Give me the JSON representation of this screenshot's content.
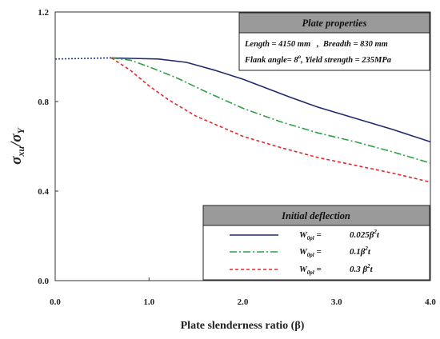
{
  "chart_data": {
    "type": "line",
    "xlabel": "Plate slenderness ratio (β)",
    "ylabel_main": "σ",
    "ylabel_sub1": "xu",
    "ylabel_slash": "/σ",
    "ylabel_sub2": "Y",
    "xlim": [
      0,
      4.0
    ],
    "ylim": [
      0,
      1.2
    ],
    "x_ticks": [
      0.0,
      1.0,
      2.0,
      3.0,
      4.0
    ],
    "x_tick_labels": [
      "0.0",
      "1.0",
      "2.0",
      "3.0",
      "4.0"
    ],
    "y_ticks": [
      0.0,
      0.4,
      0.8,
      1.2
    ],
    "y_tick_labels": [
      "0.0",
      "0.4",
      "0.8",
      "1.2"
    ],
    "grid": false,
    "prefix_segment": {
      "x": [
        0,
        0.6
      ],
      "y": [
        0.99,
        0.995
      ],
      "color": "#1f3a8c",
      "dash": "dotted"
    },
    "series": [
      {
        "key": "s1",
        "color": "#1f2a6e",
        "dash": "solid",
        "x": [
          0.6,
          0.8,
          1.1,
          1.4,
          1.7,
          2.0,
          2.5,
          2.8,
          3.2,
          3.6,
          4.0
        ],
        "y": [
          0.995,
          0.993,
          0.99,
          0.975,
          0.94,
          0.9,
          0.82,
          0.775,
          0.725,
          0.675,
          0.62
        ]
      },
      {
        "key": "s2",
        "color": "#2ea043",
        "dash": "dashdot",
        "x": [
          0.6,
          0.8,
          1.0,
          1.3,
          1.6,
          2.0,
          2.4,
          2.8,
          3.2,
          3.6,
          4.0
        ],
        "y": [
          0.995,
          0.985,
          0.955,
          0.905,
          0.845,
          0.77,
          0.71,
          0.66,
          0.62,
          0.575,
          0.525
        ]
      },
      {
        "key": "s3",
        "color": "#e8262a",
        "dash": "dashed",
        "x": [
          0.6,
          0.8,
          1.0,
          1.2,
          1.5,
          2.0,
          2.4,
          2.8,
          3.2,
          3.6,
          4.0
        ],
        "y": [
          0.995,
          0.94,
          0.87,
          0.81,
          0.735,
          0.645,
          0.595,
          0.55,
          0.515,
          0.48,
          0.44
        ]
      }
    ],
    "annotations": {
      "plate_properties": {
        "title": "Plate properties",
        "line1": "Length = 4150 mm   ,  Breadth = 830 mm",
        "line2_pre": "Flank angle= 8",
        "line2_sup": "o",
        "line2_post": ", Yield strength = 235MPa"
      },
      "legend": {
        "title": "Initial deflection",
        "items": [
          {
            "series": "s1",
            "w": "W",
            "w_sub": "0pl",
            "eq": " =",
            "coef": "0.025",
            "beta": "β",
            "sq": "2",
            "t": "t"
          },
          {
            "series": "s2",
            "w": "W",
            "w_sub": "0pl",
            "eq": " =",
            "coef": "0.1",
            "beta": "β",
            "sq": "2",
            "t": "t"
          },
          {
            "series": "s3",
            "w": "W",
            "w_sub": "0pl",
            "eq": " =",
            "coef": "0.3 ",
            "beta": "β",
            "sq": "2",
            "t": "t"
          }
        ]
      }
    }
  }
}
